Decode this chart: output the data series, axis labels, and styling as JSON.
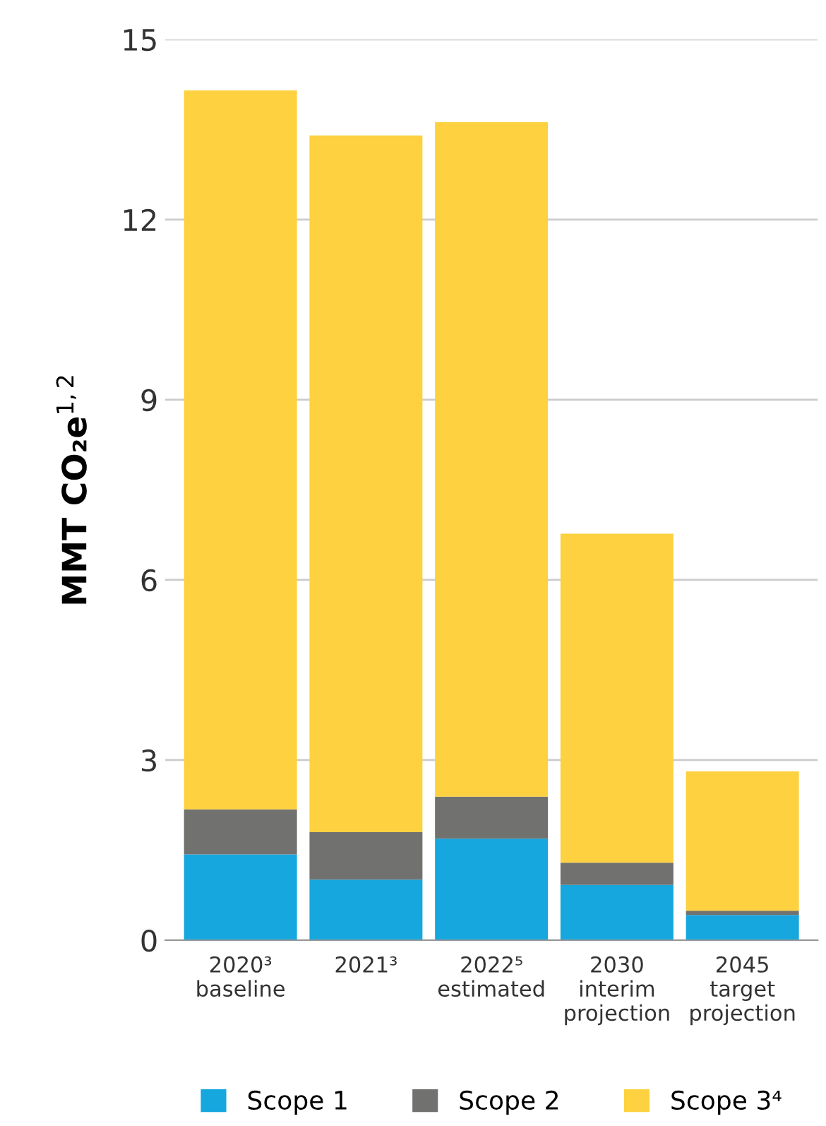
{
  "chart_data": {
    "type": "bar",
    "stacked": true,
    "ylabel": "MMT CO₂e$^{1,2}$",
    "categories": [
      "2020³\nbaseline",
      "2021³\n",
      "2022⁵\nestimated",
      "2030\ninterim\nprojection",
      "2045\ntarget\nprojection"
    ],
    "series": [
      {
        "name": "Scope 1",
        "color": "#15a7de",
        "values": [
          1.43,
          1.01,
          1.69,
          0.92,
          0.42
        ]
      },
      {
        "name": "Scope 2",
        "color": "#717270",
        "values": [
          0.75,
          0.79,
          0.7,
          0.37,
          0.07
        ]
      },
      {
        "name": "Scope 3⁴",
        "color": "#fdd13f",
        "values": [
          11.97,
          11.6,
          11.23,
          5.48,
          2.32
        ]
      }
    ],
    "ylim": [
      0,
      15
    ],
    "yticks": [
      0,
      3,
      6,
      9,
      12,
      15
    ],
    "grid": "y",
    "legend": "bottom"
  }
}
